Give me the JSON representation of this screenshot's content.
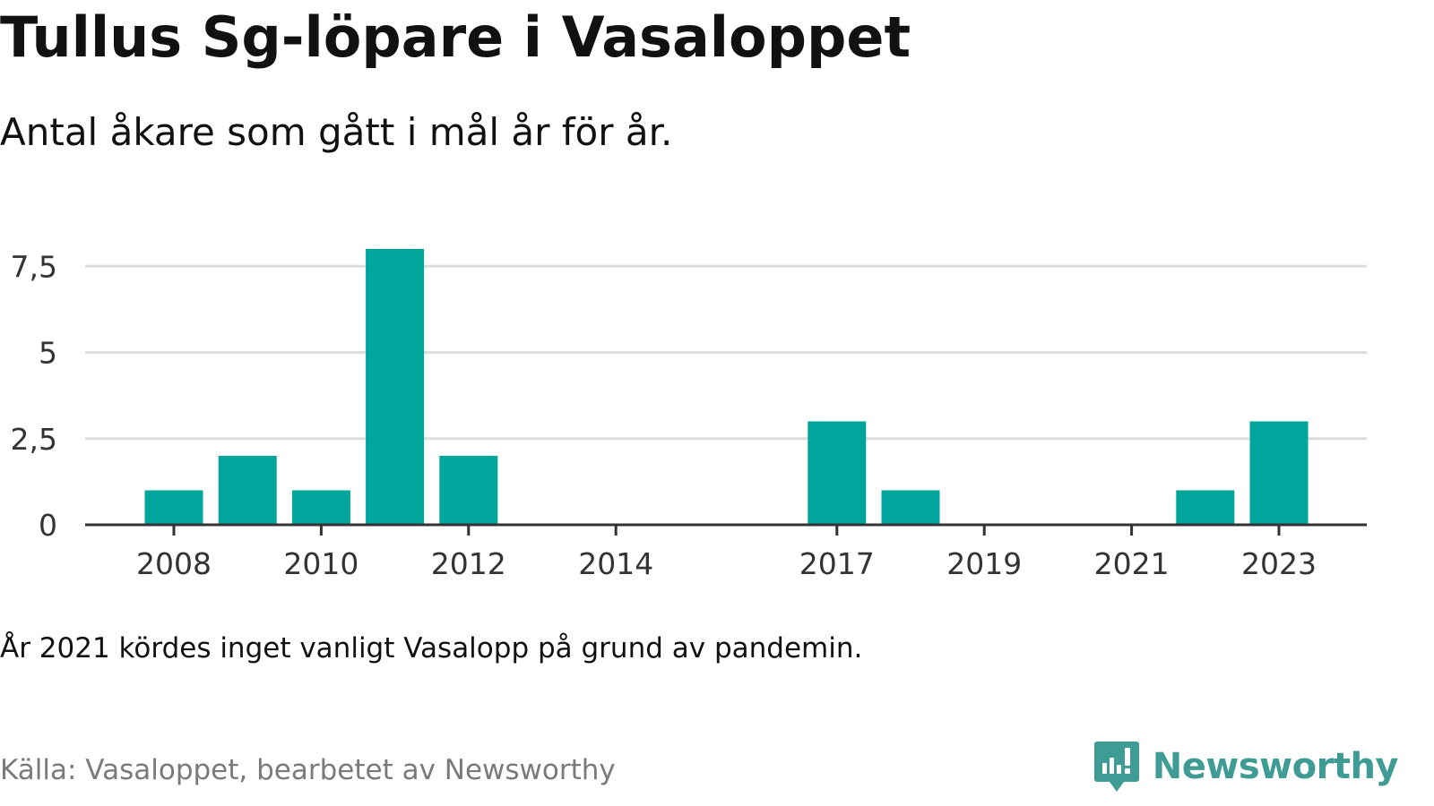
{
  "title": "Tullus Sg-löpare i Vasaloppet",
  "subtitle": "Antal åkare som gått i mål år för år.",
  "note": "År 2021 kördes inget vanligt Vasalopp på grund av pandemin.",
  "source": "Källa: Vasaloppet, bearbetet av Newsworthy",
  "brand": {
    "name": "Newsworthy",
    "icon": "newsworthy-logo-icon"
  },
  "colors": {
    "bar": "#00a69b",
    "grid": "#dddddd",
    "axis": "#333333",
    "brand": "#3f9c95"
  },
  "chart_data": {
    "type": "bar",
    "categories": [
      "2008",
      "2009",
      "2010",
      "2011",
      "2012",
      "2013",
      "2014",
      "2015",
      "2016",
      "2017",
      "2018",
      "2019",
      "2020",
      "2021",
      "2022",
      "2023"
    ],
    "values": [
      1,
      2,
      1,
      8,
      2,
      0,
      0,
      0,
      0,
      3,
      1,
      0,
      0,
      0,
      1,
      3
    ],
    "x_tick_labels": [
      "2008",
      "2010",
      "2012",
      "2014",
      "2017",
      "2019",
      "2021",
      "2023"
    ],
    "y_ticks": [
      0,
      2.5,
      5,
      7.5
    ],
    "y_tick_labels": [
      "0",
      "2,5",
      "5",
      "7,5"
    ],
    "ylim": [
      0,
      8
    ],
    "xlabel": "",
    "ylabel": "",
    "grid": true,
    "legend": "none"
  }
}
